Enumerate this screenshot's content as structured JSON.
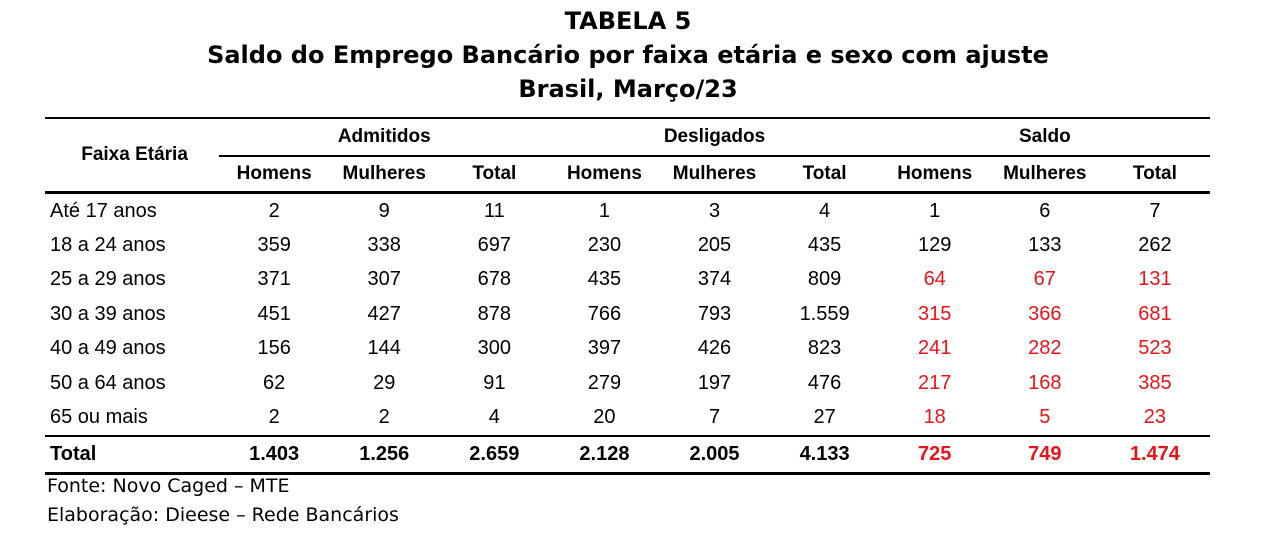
{
  "title": {
    "line1": "TABELA 5",
    "line2": "Saldo do Emprego Bancário por faixa etária e sexo com ajuste",
    "line3": "Brasil, Março/23"
  },
  "header": {
    "label": "Faixa Etária",
    "groups": [
      "Admitidos",
      "Desligados",
      "Saldo"
    ],
    "subcolumns": [
      "Homens",
      "Mulheres",
      "Total"
    ]
  },
  "highlight_color": "#e8141b",
  "rows": [
    {
      "label": "Até 17 anos",
      "values": [
        "2",
        "9",
        "11",
        "1",
        "3",
        "4",
        "1",
        "6",
        "7"
      ],
      "saldo_red": false
    },
    {
      "label": "18 a 24 anos",
      "values": [
        "359",
        "338",
        "697",
        "230",
        "205",
        "435",
        "129",
        "133",
        "262"
      ],
      "saldo_red": false
    },
    {
      "label": "25 a 29 anos",
      "values": [
        "371",
        "307",
        "678",
        "435",
        "374",
        "809",
        "64",
        "67",
        "131"
      ],
      "saldo_red": true
    },
    {
      "label": "30 a 39 anos",
      "values": [
        "451",
        "427",
        "878",
        "766",
        "793",
        "1.559",
        "315",
        "366",
        "681"
      ],
      "saldo_red": true
    },
    {
      "label": "40 a 49 anos",
      "values": [
        "156",
        "144",
        "300",
        "397",
        "426",
        "823",
        "241",
        "282",
        "523"
      ],
      "saldo_red": true
    },
    {
      "label": "50 a 64 anos",
      "values": [
        "62",
        "29",
        "91",
        "279",
        "197",
        "476",
        "217",
        "168",
        "385"
      ],
      "saldo_red": true
    },
    {
      "label": "65 ou mais",
      "values": [
        "2",
        "2",
        "4",
        "20",
        "7",
        "27",
        "18",
        "5",
        "23"
      ],
      "saldo_red": true
    }
  ],
  "total": {
    "label": "Total",
    "values": [
      "1.403",
      "1.256",
      "2.659",
      "2.128",
      "2.005",
      "4.133",
      "725",
      "749",
      "1.474"
    ],
    "saldo_red": true
  },
  "notes": {
    "source": "Fonte: Novo Caged – MTE",
    "elaboration": "Elaboração: Dieese – Rede Bancários"
  }
}
